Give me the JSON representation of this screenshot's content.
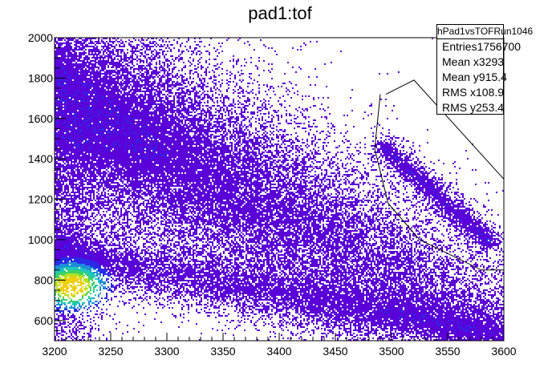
{
  "chart_data": {
    "type": "heatmap",
    "title": "pad1:tof",
    "xlim": [
      3200,
      3600
    ],
    "ylim": [
      500,
      2000
    ],
    "x_ticks": [
      3200,
      3250,
      3300,
      3350,
      3400,
      3450,
      3500,
      3550,
      3600
    ],
    "y_ticks": [
      600,
      800,
      1000,
      1200,
      1400,
      1600,
      1800,
      2000
    ],
    "palette": [
      "#5a00d8",
      "#2a2ae8",
      "#1d8fd8",
      "#1fc8b8",
      "#3ad26a",
      "#b8e020",
      "#f0d000"
    ],
    "hot_spot": {
      "x": 3215,
      "y": 775,
      "z_level": "max"
    },
    "main_band": {
      "x_start": 3200,
      "y_start": 1700,
      "x_end": 3600,
      "y_end": 560
    },
    "lower_band": {
      "x_start": 3200,
      "y_start": 930,
      "x_end": 3600,
      "y_end": 520
    },
    "island": {
      "x_start": 3495,
      "y_start": 1450,
      "x_end": 3585,
      "y_end": 1000
    },
    "cut_polygon": [
      [
        3495,
        1720
      ],
      [
        3520,
        1790
      ],
      [
        3600,
        1300
      ],
      [
        3600,
        850
      ],
      [
        3580,
        850
      ],
      [
        3525,
        1000
      ],
      [
        3497,
        1180
      ],
      [
        3485,
        1450
      ],
      [
        3490,
        1720
      ]
    ],
    "stats": {
      "name": "hPad1vsTOFRun1046",
      "rows": [
        {
          "label": "Entries",
          "value": "1756700"
        },
        {
          "label": "Mean x",
          "value": "3293"
        },
        {
          "label": "Mean y",
          "value": "915.4"
        },
        {
          "label": "RMS x",
          "value": "108.9"
        },
        {
          "label": "RMS y",
          "value": "253.4"
        }
      ]
    }
  }
}
